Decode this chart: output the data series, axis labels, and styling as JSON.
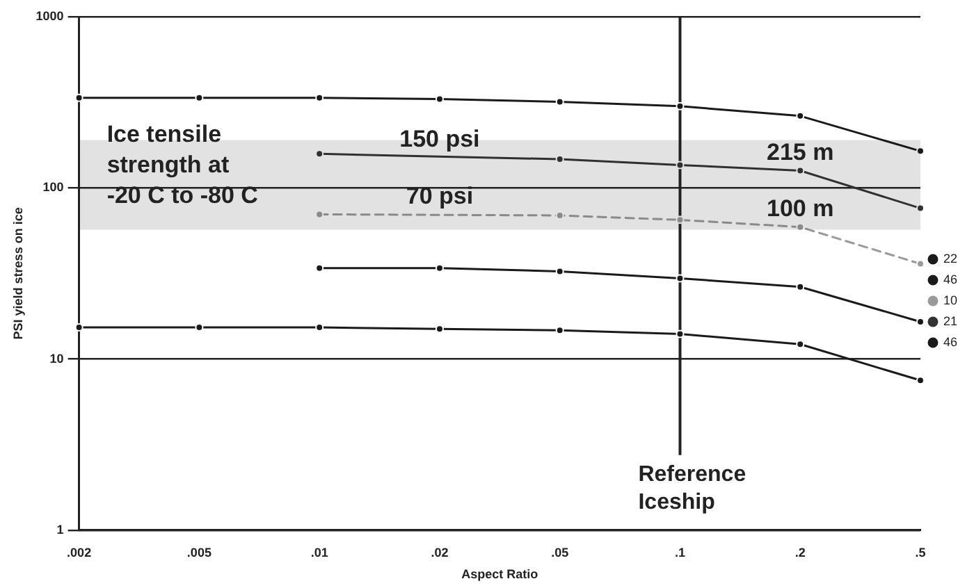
{
  "chart_data": {
    "type": "line",
    "xlabel": "Aspect Ratio",
    "ylabel": "PSI yield stress on ice",
    "categories": [
      ".002",
      ".005",
      ".01",
      ".02",
      ".05",
      ".1",
      ".2",
      ".5"
    ],
    "log": "y",
    "ylim": [
      1,
      1000
    ],
    "yticks": [
      1,
      10,
      100,
      1000
    ],
    "grid": "y",
    "legend": "right",
    "marker": "circle",
    "line_style": "solid",
    "series": [
      {
        "name": "22",
        "color": "#1a1a1a",
        "values": [
          336,
          336,
          336,
          330,
          318,
          300,
          263,
          164
        ]
      },
      {
        "name": "46",
        "color": "#1a1a1a",
        "values": [
          null,
          null,
          34,
          34,
          32.5,
          29.6,
          26.4,
          16.5
        ]
      },
      {
        "name": "10",
        "color": "#9a9a9a",
        "line_style": "dashed",
        "values": [
          null,
          null,
          70,
          null,
          69,
          65,
          59,
          36
        ]
      },
      {
        "name": "21",
        "color": "#333333",
        "values": [
          null,
          null,
          158,
          null,
          147,
          136,
          126,
          76
        ]
      },
      {
        "name": "46",
        "color": "#1a1a1a",
        "values": [
          15.3,
          15.3,
          15.3,
          15,
          14.7,
          14,
          12.2,
          7.5
        ]
      }
    ],
    "bands": [
      {
        "axis": "y",
        "from": 57,
        "to": 190,
        "label": "Ice tensile strength at -20 C to -80 C",
        "color": "#222222"
      }
    ],
    "ref_lines": [
      {
        "axis": "x",
        "value": ".1",
        "label": "Reference Iceship",
        "color": "#222222"
      }
    ],
    "annotations": [
      {
        "text": "150 psi",
        "x": ".02",
        "y": 150
      },
      {
        "text": "70 psi",
        "x": ".02",
        "y": 70
      },
      {
        "text": "215 m",
        "x": ".2",
        "y": 126
      },
      {
        "text": "100 m",
        "x": ".2",
        "y": 59
      }
    ]
  }
}
